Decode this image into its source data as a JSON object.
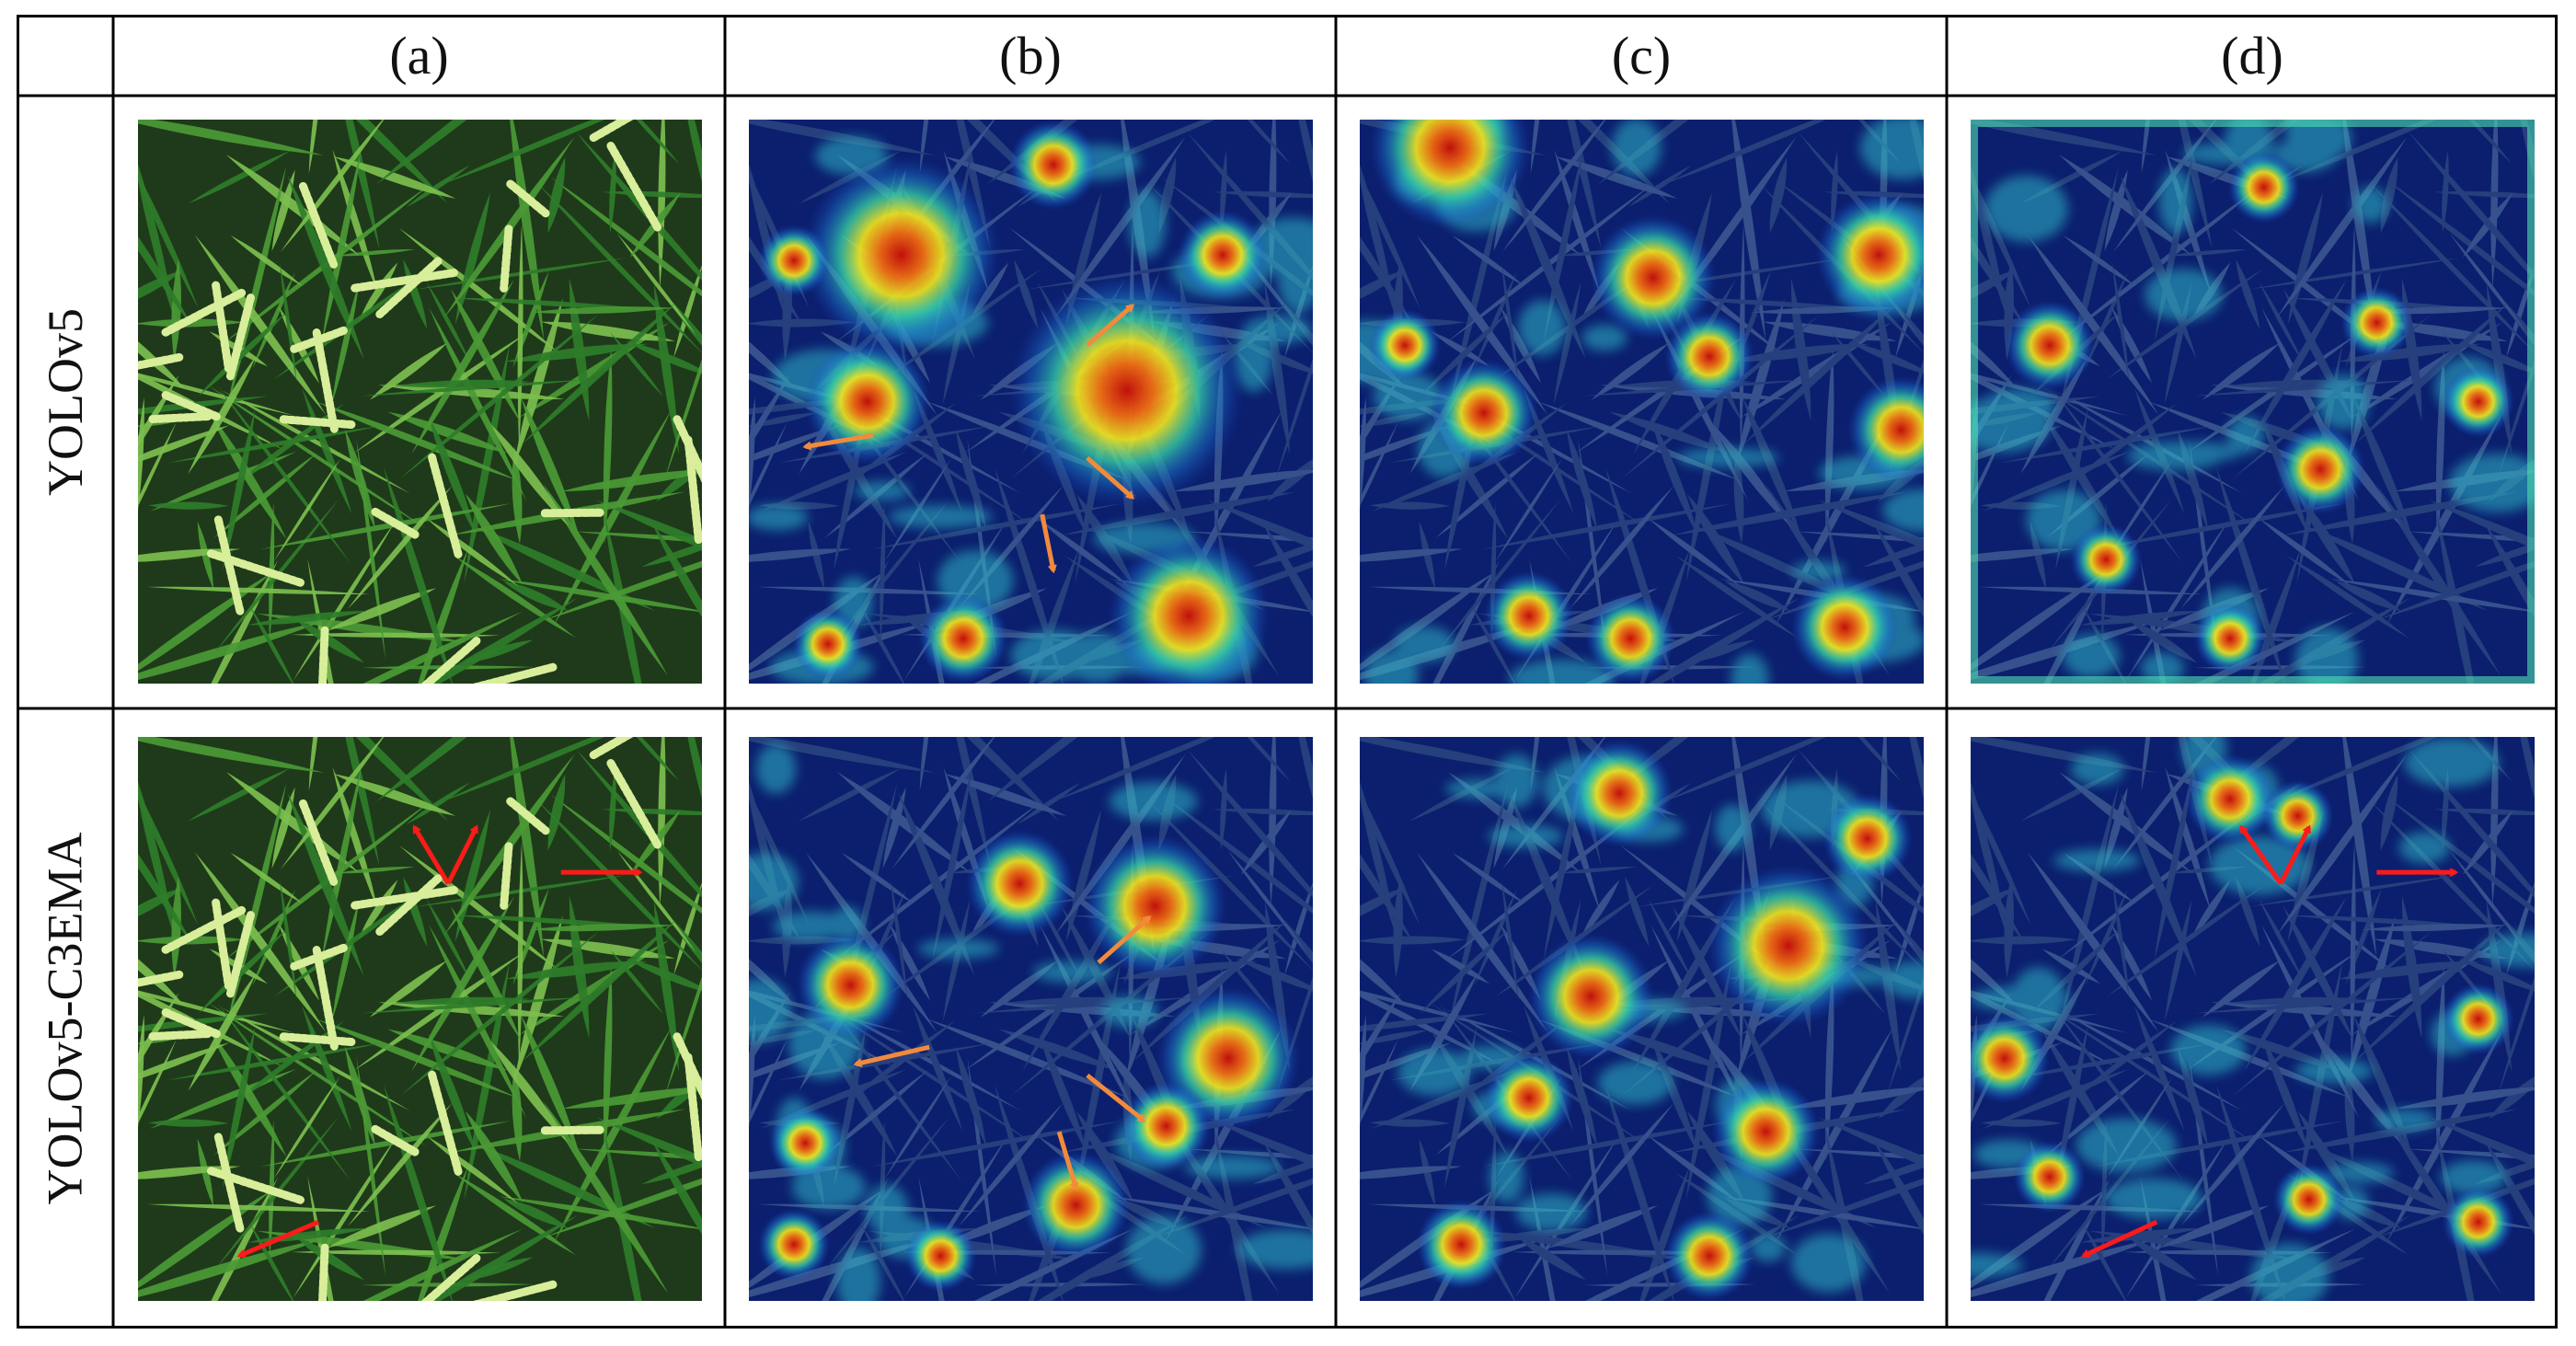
{
  "columns": [
    "(a)",
    "(b)",
    "(c)",
    "(d)"
  ],
  "rows": [
    "YOLOv5",
    "YOLOv5-C3EMA"
  ],
  "panels": [
    {
      "row": 0,
      "col": 0,
      "kind": "photo",
      "arrow_color": "#ff1a1a",
      "arrows": []
    },
    {
      "row": 0,
      "col": 1,
      "kind": "heatmap",
      "arrow_color": "#f28a3c",
      "hot": [
        [
          0.27,
          0.24,
          0.11
        ],
        [
          0.67,
          0.48,
          0.13
        ],
        [
          0.21,
          0.5,
          0.07
        ],
        [
          0.54,
          0.08,
          0.05
        ],
        [
          0.78,
          0.88,
          0.09
        ],
        [
          0.38,
          0.92,
          0.05
        ],
        [
          0.84,
          0.24,
          0.05
        ],
        [
          0.08,
          0.25,
          0.04
        ],
        [
          0.14,
          0.93,
          0.04
        ]
      ],
      "arrows": [
        [
          0.6,
          0.4,
          0.68,
          0.33
        ],
        [
          0.22,
          0.56,
          0.1,
          0.58
        ],
        [
          0.6,
          0.6,
          0.68,
          0.67
        ],
        [
          0.52,
          0.7,
          0.54,
          0.8
        ]
      ]
    },
    {
      "row": 0,
      "col": 2,
      "kind": "heatmap",
      "arrow_color": "#f28a3c",
      "hot": [
        [
          0.16,
          0.05,
          0.09
        ],
        [
          0.52,
          0.28,
          0.07
        ],
        [
          0.92,
          0.24,
          0.07
        ],
        [
          0.22,
          0.52,
          0.06
        ],
        [
          0.96,
          0.55,
          0.06
        ],
        [
          0.48,
          0.92,
          0.05
        ],
        [
          0.86,
          0.9,
          0.06
        ],
        [
          0.3,
          0.88,
          0.05
        ],
        [
          0.62,
          0.42,
          0.05
        ],
        [
          0.08,
          0.4,
          0.04
        ]
      ],
      "arrows": []
    },
    {
      "row": 0,
      "col": 3,
      "kind": "heatmap",
      "arrow_color": "#ff1a1a",
      "hot": [
        [
          0.14,
          0.4,
          0.05
        ],
        [
          0.52,
          0.12,
          0.04
        ],
        [
          0.62,
          0.62,
          0.05
        ],
        [
          0.24,
          0.78,
          0.04
        ],
        [
          0.9,
          0.5,
          0.04
        ],
        [
          0.46,
          0.92,
          0.04
        ],
        [
          0.72,
          0.36,
          0.04
        ]
      ],
      "arrows": [],
      "frame": true
    },
    {
      "row": 1,
      "col": 0,
      "kind": "photo",
      "arrow_color": "#ff1a1a",
      "arrows": [
        [
          0.55,
          0.26,
          0.49,
          0.16
        ],
        [
          0.55,
          0.26,
          0.6,
          0.16
        ],
        [
          0.75,
          0.24,
          0.89,
          0.24
        ],
        [
          0.32,
          0.86,
          0.18,
          0.92
        ]
      ]
    },
    {
      "row": 1,
      "col": 1,
      "kind": "heatmap",
      "arrow_color": "#f28a3c",
      "hot": [
        [
          0.72,
          0.3,
          0.08
        ],
        [
          0.85,
          0.57,
          0.08
        ],
        [
          0.48,
          0.26,
          0.06
        ],
        [
          0.18,
          0.44,
          0.06
        ],
        [
          0.74,
          0.69,
          0.05
        ],
        [
          0.58,
          0.83,
          0.06
        ],
        [
          0.08,
          0.9,
          0.04
        ],
        [
          0.34,
          0.92,
          0.04
        ],
        [
          0.1,
          0.72,
          0.04
        ]
      ],
      "arrows": [
        [
          0.62,
          0.4,
          0.71,
          0.32
        ],
        [
          0.32,
          0.55,
          0.19,
          0.58
        ],
        [
          0.6,
          0.6,
          0.7,
          0.68
        ],
        [
          0.55,
          0.7,
          0.58,
          0.8
        ]
      ]
    },
    {
      "row": 1,
      "col": 2,
      "kind": "heatmap",
      "arrow_color": "#f28a3c",
      "hot": [
        [
          0.41,
          0.46,
          0.07
        ],
        [
          0.76,
          0.37,
          0.09
        ],
        [
          0.46,
          0.1,
          0.06
        ],
        [
          0.72,
          0.7,
          0.06
        ],
        [
          0.18,
          0.9,
          0.05
        ],
        [
          0.62,
          0.92,
          0.05
        ],
        [
          0.3,
          0.64,
          0.05
        ],
        [
          0.9,
          0.18,
          0.05
        ]
      ],
      "arrows": []
    },
    {
      "row": 1,
      "col": 3,
      "kind": "heatmap",
      "arrow_color": "#ff1a1a",
      "hot": [
        [
          0.46,
          0.11,
          0.05
        ],
        [
          0.58,
          0.14,
          0.04
        ],
        [
          0.06,
          0.57,
          0.05
        ],
        [
          0.9,
          0.86,
          0.04
        ],
        [
          0.14,
          0.78,
          0.04
        ],
        [
          0.6,
          0.82,
          0.04
        ],
        [
          0.9,
          0.5,
          0.04
        ]
      ],
      "arrows": [
        [
          0.55,
          0.26,
          0.48,
          0.16
        ],
        [
          0.55,
          0.26,
          0.6,
          0.16
        ],
        [
          0.72,
          0.24,
          0.86,
          0.24
        ],
        [
          0.33,
          0.86,
          0.2,
          0.92
        ]
      ]
    }
  ]
}
